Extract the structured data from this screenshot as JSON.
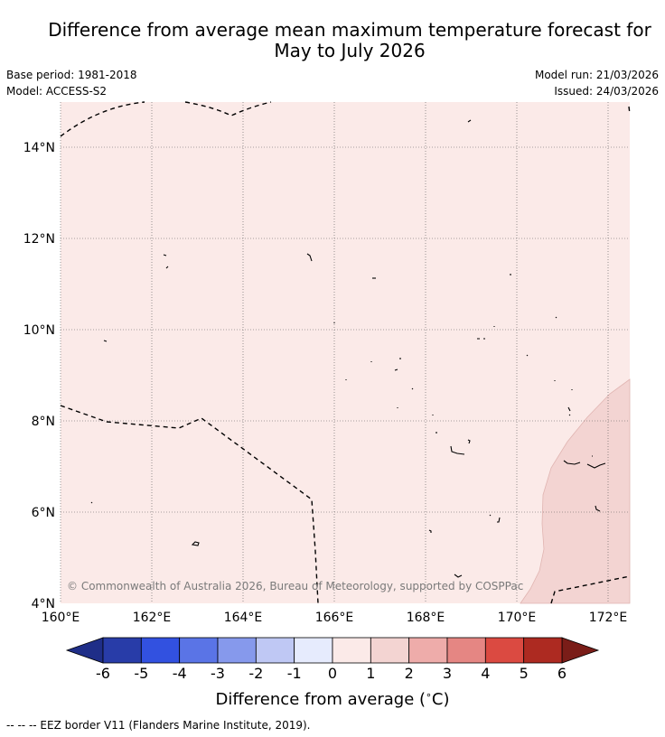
{
  "title": {
    "line1": "Difference from average mean maximum temperature forecast for",
    "line2": "May to July 2026"
  },
  "meta": {
    "base_period": "Base period: 1981-2018",
    "model": "Model: ACCESS-S2",
    "model_run": "Model run: 21/03/2026",
    "issued": "Issued: 24/03/2026"
  },
  "map": {
    "lon_range": [
      160,
      172.5
    ],
    "lat_range": [
      4,
      15
    ],
    "lon_ticks": [
      "160°E",
      "162°E",
      "164°E",
      "166°E",
      "168°E",
      "170°E",
      "172°E"
    ],
    "lat_ticks": [
      "14°N",
      "12°N",
      "10°N",
      "8°N",
      "6°N",
      "4°N"
    ],
    "background_class_color": "#fbeae8",
    "warm_region_color": "#f3d4d2",
    "copyright": "© Commonwealth of Australia 2026, Bureau of Meteorology, supported by COSPPac"
  },
  "colorbar": {
    "ticks": [
      "-6",
      "-5",
      "-4",
      "-3",
      "-2",
      "-1",
      "0",
      "1",
      "2",
      "3",
      "4",
      "5",
      "6"
    ],
    "colors": [
      "#283ca8",
      "#3251e0",
      "#5a74e6",
      "#8699ec",
      "#bfc8f4",
      "#e6ebfd",
      "#fbeae8",
      "#f3d4d2",
      "#eeacaa",
      "#e58683",
      "#db4a41",
      "#ad2a21"
    ],
    "under_color": "#1f2e88",
    "over_color": "#7a1d18",
    "label": "Difference from average (",
    "label_unit": "∘",
    "label_end": "C)"
  },
  "footnote": "--  --  -- EEZ border V11 (Flanders Marine Institute, 2019)."
}
